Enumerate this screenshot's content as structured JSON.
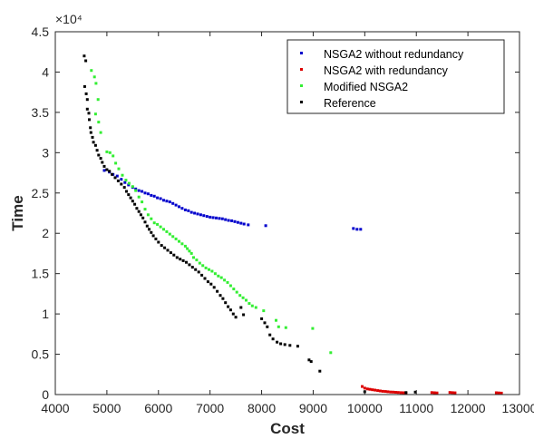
{
  "chart_data": {
    "type": "scatter",
    "xlabel": "Cost",
    "ylabel": "Time",
    "xlim": [
      4000,
      13000
    ],
    "ylim": [
      0,
      45000
    ],
    "x_ticks": [
      4000,
      5000,
      6000,
      7000,
      8000,
      9000,
      10000,
      11000,
      12000,
      13000
    ],
    "y_ticks": [
      0,
      5000,
      10000,
      15000,
      20000,
      25000,
      30000,
      35000,
      40000,
      45000
    ],
    "x_tick_labels": [
      "4000",
      "5000",
      "6000",
      "7000",
      "8000",
      "9000",
      "10000",
      "11000",
      "12000",
      "13000"
    ],
    "y_tick_labels": [
      "0",
      "0.5",
      "1",
      "1.5",
      "2",
      "2.5",
      "3",
      "3.5",
      "4",
      "4.5"
    ],
    "y_exponent_label": "×10⁴",
    "grid": false,
    "legend_position": "top-right",
    "series": [
      {
        "name": "NSGA2 without redundancy",
        "color": "#0000cc",
        "points": [
          [
            4950,
            27800
          ],
          [
            5050,
            27600
          ],
          [
            5120,
            27300
          ],
          [
            5200,
            27100
          ],
          [
            5280,
            26700
          ],
          [
            5350,
            26300
          ],
          [
            5420,
            26000
          ],
          [
            5500,
            25700
          ],
          [
            5560,
            25500
          ],
          [
            5620,
            25300
          ],
          [
            5680,
            25200
          ],
          [
            5740,
            25000
          ],
          [
            5800,
            24900
          ],
          [
            5860,
            24700
          ],
          [
            5920,
            24600
          ],
          [
            5980,
            24400
          ],
          [
            6040,
            24300
          ],
          [
            6100,
            24100
          ],
          [
            6160,
            24000
          ],
          [
            6220,
            23900
          ],
          [
            6280,
            23700
          ],
          [
            6340,
            23500
          ],
          [
            6400,
            23300
          ],
          [
            6460,
            23100
          ],
          [
            6520,
            22900
          ],
          [
            6580,
            22800
          ],
          [
            6640,
            22600
          ],
          [
            6700,
            22500
          ],
          [
            6760,
            22400
          ],
          [
            6820,
            22300
          ],
          [
            6880,
            22200
          ],
          [
            6940,
            22100
          ],
          [
            7000,
            22000
          ],
          [
            7060,
            21950
          ],
          [
            7120,
            21900
          ],
          [
            7180,
            21850
          ],
          [
            7240,
            21800
          ],
          [
            7300,
            21700
          ],
          [
            7360,
            21600
          ],
          [
            7420,
            21550
          ],
          [
            7480,
            21450
          ],
          [
            7540,
            21350
          ],
          [
            7600,
            21250
          ],
          [
            7660,
            21150
          ],
          [
            7740,
            21050
          ],
          [
            8080,
            20950
          ],
          [
            9780,
            20600
          ],
          [
            9850,
            20500
          ],
          [
            9920,
            20500
          ]
        ]
      },
      {
        "name": "NSGA2 with redundancy",
        "color": "#dd0000",
        "points": [
          [
            9950,
            1000
          ],
          [
            10000,
            800
          ],
          [
            10050,
            700
          ],
          [
            10100,
            650
          ],
          [
            10150,
            600
          ],
          [
            10200,
            550
          ],
          [
            10250,
            500
          ],
          [
            10300,
            450
          ],
          [
            10350,
            400
          ],
          [
            10400,
            380
          ],
          [
            10450,
            350
          ],
          [
            10500,
            320
          ],
          [
            10550,
            300
          ],
          [
            10600,
            280
          ],
          [
            10650,
            260
          ],
          [
            10700,
            240
          ],
          [
            10750,
            220
          ],
          [
            10800,
            200
          ],
          [
            11300,
            250
          ],
          [
            11350,
            230
          ],
          [
            11400,
            200
          ],
          [
            11650,
            260
          ],
          [
            11700,
            240
          ],
          [
            11750,
            210
          ],
          [
            12550,
            220
          ],
          [
            12600,
            200
          ],
          [
            12650,
            180
          ]
        ]
      },
      {
        "name": "Modified NSGA2",
        "color": "#33ee33",
        "points": [
          [
            4700,
            40200
          ],
          [
            4760,
            39400
          ],
          [
            4790,
            38600
          ],
          [
            4830,
            36600
          ],
          [
            4780,
            34800
          ],
          [
            4840,
            33800
          ],
          [
            4880,
            32500
          ],
          [
            5000,
            30100
          ],
          [
            5060,
            30000
          ],
          [
            5120,
            29600
          ],
          [
            5170,
            28700
          ],
          [
            5230,
            28000
          ],
          [
            5300,
            27200
          ],
          [
            5370,
            26600
          ],
          [
            5430,
            26200
          ],
          [
            5500,
            25800
          ],
          [
            5560,
            25300
          ],
          [
            5620,
            24500
          ],
          [
            5680,
            23900
          ],
          [
            5740,
            23000
          ],
          [
            5800,
            22300
          ],
          [
            5860,
            21800
          ],
          [
            5920,
            21300
          ],
          [
            5980,
            21100
          ],
          [
            6040,
            20800
          ],
          [
            6100,
            20500
          ],
          [
            6160,
            20200
          ],
          [
            6220,
            19900
          ],
          [
            6280,
            19600
          ],
          [
            6340,
            19300
          ],
          [
            6400,
            19000
          ],
          [
            6460,
            18700
          ],
          [
            6520,
            18400
          ],
          [
            6560,
            18100
          ],
          [
            6600,
            17800
          ],
          [
            6640,
            17500
          ],
          [
            6680,
            17000
          ],
          [
            6740,
            16700
          ],
          [
            6800,
            16300
          ],
          [
            6860,
            16000
          ],
          [
            6920,
            15700
          ],
          [
            6980,
            15500
          ],
          [
            7040,
            15300
          ],
          [
            7100,
            15000
          ],
          [
            7160,
            14700
          ],
          [
            7220,
            14500
          ],
          [
            7280,
            14200
          ],
          [
            7340,
            13900
          ],
          [
            7400,
            13500
          ],
          [
            7460,
            13100
          ],
          [
            7520,
            12700
          ],
          [
            7580,
            12300
          ],
          [
            7640,
            12000
          ],
          [
            7700,
            11700
          ],
          [
            7760,
            11300
          ],
          [
            7820,
            11000
          ],
          [
            7890,
            10800
          ],
          [
            8040,
            10400
          ],
          [
            8280,
            9200
          ],
          [
            8330,
            8400
          ],
          [
            8470,
            8300
          ],
          [
            8990,
            8200
          ],
          [
            9340,
            5200
          ]
        ]
      },
      {
        "name": "Reference",
        "color": "#000000",
        "points": [
          [
            4560,
            42000
          ],
          [
            4590,
            41400
          ],
          [
            4570,
            38200
          ],
          [
            4600,
            37300
          ],
          [
            4620,
            36600
          ],
          [
            4620,
            35400
          ],
          [
            4650,
            34900
          ],
          [
            4660,
            34100
          ],
          [
            4680,
            33100
          ],
          [
            4690,
            32500
          ],
          [
            4720,
            31900
          ],
          [
            4740,
            31300
          ],
          [
            4780,
            30900
          ],
          [
            4810,
            30300
          ],
          [
            4840,
            29700
          ],
          [
            4880,
            29300
          ],
          [
            4910,
            28800
          ],
          [
            4950,
            28300
          ],
          [
            5000,
            27900
          ],
          [
            5050,
            27700
          ],
          [
            5100,
            27300
          ],
          [
            5160,
            26900
          ],
          [
            5220,
            26500
          ],
          [
            5280,
            26100
          ],
          [
            5340,
            25700
          ],
          [
            5380,
            25200
          ],
          [
            5420,
            24800
          ],
          [
            5460,
            24400
          ],
          [
            5500,
            24000
          ],
          [
            5540,
            23600
          ],
          [
            5580,
            23100
          ],
          [
            5620,
            22700
          ],
          [
            5660,
            22300
          ],
          [
            5700,
            21900
          ],
          [
            5740,
            21400
          ],
          [
            5780,
            20900
          ],
          [
            5820,
            20500
          ],
          [
            5860,
            20100
          ],
          [
            5900,
            19700
          ],
          [
            5950,
            19300
          ],
          [
            6000,
            18900
          ],
          [
            6060,
            18500
          ],
          [
            6120,
            18200
          ],
          [
            6180,
            17900
          ],
          [
            6240,
            17600
          ],
          [
            6300,
            17300
          ],
          [
            6360,
            17000
          ],
          [
            6420,
            16800
          ],
          [
            6480,
            16600
          ],
          [
            6540,
            16400
          ],
          [
            6600,
            16100
          ],
          [
            6660,
            15800
          ],
          [
            6720,
            15500
          ],
          [
            6780,
            15200
          ],
          [
            6840,
            14800
          ],
          [
            6900,
            14400
          ],
          [
            6960,
            14000
          ],
          [
            7020,
            13700
          ],
          [
            7080,
            13300
          ],
          [
            7140,
            12800
          ],
          [
            7200,
            12300
          ],
          [
            7250,
            11900
          ],
          [
            7300,
            11400
          ],
          [
            7350,
            10900
          ],
          [
            7400,
            10500
          ],
          [
            7450,
            10000
          ],
          [
            7500,
            9600
          ],
          [
            7600,
            10800
          ],
          [
            7650,
            9900
          ],
          [
            8000,
            9400
          ],
          [
            8060,
            8900
          ],
          [
            8110,
            8400
          ],
          [
            8160,
            7400
          ],
          [
            8220,
            6900
          ],
          [
            8300,
            6500
          ],
          [
            8370,
            6300
          ],
          [
            8450,
            6200
          ],
          [
            8550,
            6100
          ],
          [
            8700,
            6000
          ],
          [
            8920,
            4300
          ],
          [
            8960,
            4100
          ],
          [
            9130,
            2900
          ],
          [
            10000,
            350
          ],
          [
            10800,
            250
          ],
          [
            10980,
            300
          ]
        ]
      }
    ]
  }
}
